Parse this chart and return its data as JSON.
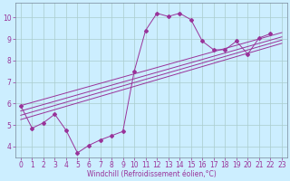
{
  "bg_color": "#cceeff",
  "line_color": "#993399",
  "grid_color": "#aacccc",
  "xlabel": "Windchill (Refroidissement éolien,°C)",
  "xlim": [
    -0.5,
    23.5
  ],
  "ylim": [
    3.5,
    10.7
  ],
  "xticks": [
    0,
    1,
    2,
    3,
    4,
    5,
    6,
    7,
    8,
    9,
    10,
    11,
    12,
    13,
    14,
    15,
    16,
    17,
    18,
    19,
    20,
    21,
    22,
    23
  ],
  "yticks": [
    4,
    5,
    6,
    7,
    8,
    9,
    10
  ],
  "main_x": [
    0,
    1,
    2,
    3,
    4,
    5,
    6,
    7,
    8,
    9,
    10,
    11,
    12,
    13,
    14,
    15,
    16,
    17,
    18,
    19,
    20,
    21,
    22
  ],
  "main_y": [
    5.9,
    4.85,
    5.1,
    5.5,
    4.75,
    3.7,
    4.05,
    4.3,
    4.5,
    4.7,
    7.5,
    9.4,
    10.2,
    10.05,
    10.2,
    9.9,
    8.9,
    8.5,
    8.5,
    8.9,
    8.3,
    9.05,
    9.25
  ],
  "trend_lines": [
    {
      "x": [
        0,
        23
      ],
      "y": [
        5.9,
        9.3
      ]
    },
    {
      "x": [
        0,
        23
      ],
      "y": [
        5.65,
        9.1
      ]
    },
    {
      "x": [
        0,
        23
      ],
      "y": [
        5.45,
        8.95
      ]
    },
    {
      "x": [
        0,
        23
      ],
      "y": [
        5.25,
        8.8
      ]
    }
  ],
  "tick_fontsize": 5.5,
  "xlabel_fontsize": 5.5,
  "linewidth": 0.7,
  "markersize": 2.0
}
